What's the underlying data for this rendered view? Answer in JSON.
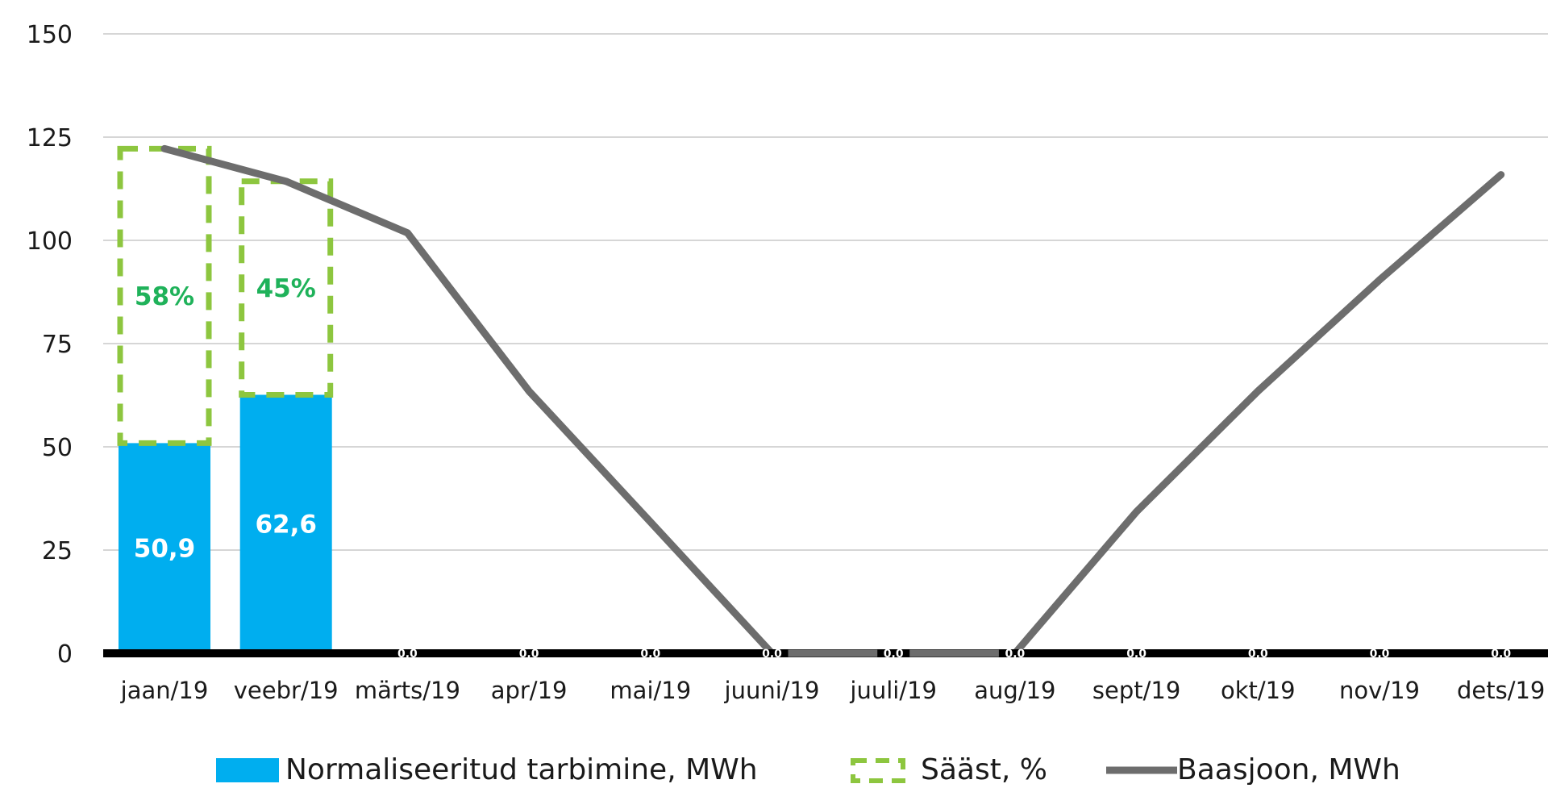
{
  "chart_data": {
    "type": "bar",
    "categories": [
      "jaan/19",
      "veebr/19",
      "märts/19",
      "apr/19",
      "mai/19",
      "juuni/19",
      "juuli/19",
      "aug/19",
      "sept/19",
      "okt/19",
      "nov/19",
      "dets/19"
    ],
    "ylim": [
      0,
      150
    ],
    "yticks": [
      "0",
      "25",
      "50",
      "75",
      "100",
      "125",
      "150"
    ],
    "grid": true,
    "legend_position": "bottom",
    "series": [
      {
        "name": "Normaliseeritud tarbimine, MWh",
        "kind": "bar",
        "color": "#00aeef",
        "values": [
          50.9,
          62.6,
          null,
          null,
          null,
          null,
          null,
          null,
          null,
          null,
          null,
          null
        ],
        "labels": [
          "50,9",
          "62,6"
        ]
      },
      {
        "name": "Sääst, %",
        "kind": "bar-dashed-outline",
        "color": "#8dc63f",
        "tops": [
          122.2,
          114.3,
          null,
          null,
          null,
          null,
          null,
          null,
          null,
          null,
          null,
          null
        ],
        "labels": [
          "58%",
          "45%"
        ]
      },
      {
        "name": "Baasjoon, MWh",
        "kind": "line",
        "color": "#6d6d6d",
        "values": [
          122.2,
          114.3,
          101.8,
          63.5,
          31.8,
          0,
          0,
          0,
          34.3,
          63.5,
          90.4,
          115.9
        ]
      }
    ],
    "zero_markers": "0,0"
  }
}
